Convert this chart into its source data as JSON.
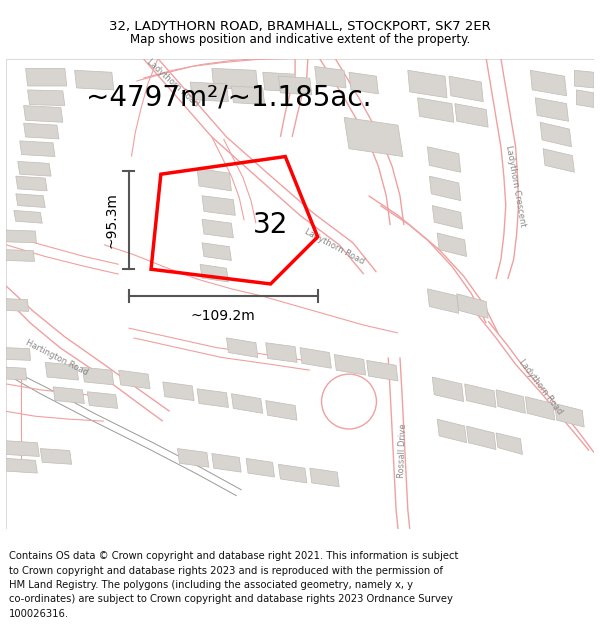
{
  "title_line1": "32, LADYTHORN ROAD, BRAMHALL, STOCKPORT, SK7 2ER",
  "title_line2": "Map shows position and indicative extent of the property.",
  "area_label": "~4797m²/~1.185ac.",
  "width_label": "~109.2m",
  "height_label": "~95.3m",
  "property_number": "32",
  "footer_lines": [
    "Contains OS data © Crown copyright and database right 2021. This information is subject",
    "to Crown copyright and database rights 2023 and is reproduced with the permission of",
    "HM Land Registry. The polygons (including the associated geometry, namely x, y",
    "co-ordinates) are subject to Crown copyright and database rights 2023 Ordnance Survey",
    "100026316."
  ],
  "map_bg": "#ffffff",
  "road_line_color": "#f0a0a0",
  "road_fill_color": "#f8e8e8",
  "building_fill": "#d8d4cf",
  "building_edge": "#c0bcb6",
  "plot_color": "#ff0000",
  "dim_color": "#555555",
  "text_color": "#000000",
  "road_label_color": "#888888",
  "title_fontsize": 9.5,
  "subtitle_fontsize": 8.5,
  "area_fontsize": 20,
  "property_num_fontsize": 20,
  "dim_fontsize": 10,
  "road_label_fontsize": 6,
  "footer_fontsize": 7.2
}
